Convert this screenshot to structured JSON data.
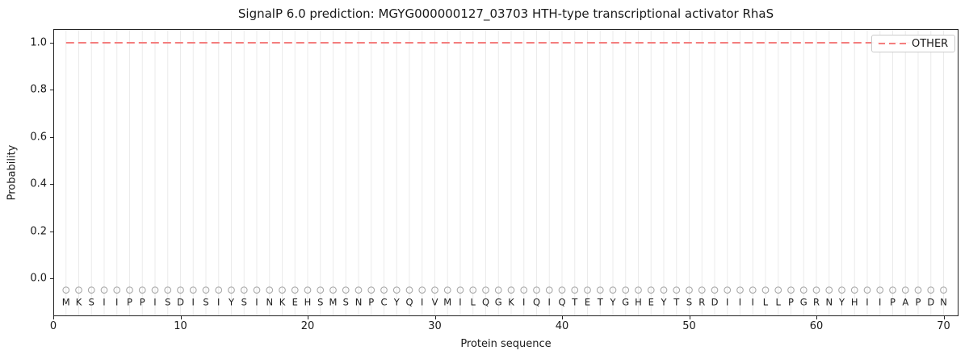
{
  "figure": {
    "title": "SignalP 6.0 prediction: MGYG000000127_03703 HTH-type transcriptional activator RhaS",
    "xlabel": "Protein sequence",
    "ylabel": "Probability",
    "legend": {
      "label": "OTHER",
      "position": "upper-right",
      "style": "dashed"
    }
  },
  "colors": {
    "accent_red": "#f47e7e",
    "grid": "#ebebeb",
    "spine": "#222222",
    "marker": "#a9a9a9",
    "text": "#1a1a1a",
    "legend_border": "#cccccc"
  },
  "chart_data": {
    "type": "line",
    "title": "SignalP 6.0 prediction: MGYG000000127_03703 HTH-type transcriptional activator RhaS",
    "xlabel": "Protein sequence",
    "ylabel": "Probability",
    "xlim": [
      0,
      71.2
    ],
    "ylim": [
      -0.16,
      1.06
    ],
    "x_ticks": [
      0,
      10,
      20,
      30,
      40,
      50,
      60,
      70
    ],
    "y_ticks": [
      0.0,
      0.2,
      0.4,
      0.6,
      0.8,
      1.0
    ],
    "grid": "vertical-gridline-per-residue",
    "legend_position": "upper-right",
    "sequence": "MKSIIPPISDISIYSINKEHSMSNPCYQIVMILQGKIQIQTETYGHEYTSRDIIILLPGRNYHIIPAPDN",
    "residue_marker": {
      "shape": "open-circle",
      "y": -0.05,
      "color": "#a9a9a9"
    },
    "series": [
      {
        "name": "OTHER",
        "linestyle": "dashed",
        "color": "#f47e7e",
        "x": [
          1,
          2,
          3,
          4,
          5,
          6,
          7,
          8,
          9,
          10,
          11,
          12,
          13,
          14,
          15,
          16,
          17,
          18,
          19,
          20,
          21,
          22,
          23,
          24,
          25,
          26,
          27,
          28,
          29,
          30,
          31,
          32,
          33,
          34,
          35,
          36,
          37,
          38,
          39,
          40,
          41,
          42,
          43,
          44,
          45,
          46,
          47,
          48,
          49,
          50,
          51,
          52,
          53,
          54,
          55,
          56,
          57,
          58,
          59,
          60,
          61,
          62,
          63,
          64,
          65,
          66,
          67,
          68,
          69,
          70
        ],
        "values": [
          1.0,
          1.0,
          1.0,
          1.0,
          1.0,
          1.0,
          1.0,
          1.0,
          1.0,
          1.0,
          1.0,
          1.0,
          1.0,
          1.0,
          1.0,
          1.0,
          1.0,
          1.0,
          1.0,
          1.0,
          1.0,
          1.0,
          1.0,
          1.0,
          1.0,
          1.0,
          1.0,
          1.0,
          1.0,
          1.0,
          1.0,
          1.0,
          1.0,
          1.0,
          1.0,
          1.0,
          1.0,
          1.0,
          1.0,
          1.0,
          1.0,
          1.0,
          1.0,
          1.0,
          1.0,
          1.0,
          1.0,
          1.0,
          1.0,
          1.0,
          1.0,
          1.0,
          1.0,
          1.0,
          1.0,
          1.0,
          1.0,
          1.0,
          1.0,
          1.0,
          1.0,
          1.0,
          1.0,
          1.0,
          1.0,
          1.0,
          1.0,
          1.0,
          1.0,
          1.0
        ]
      }
    ]
  }
}
